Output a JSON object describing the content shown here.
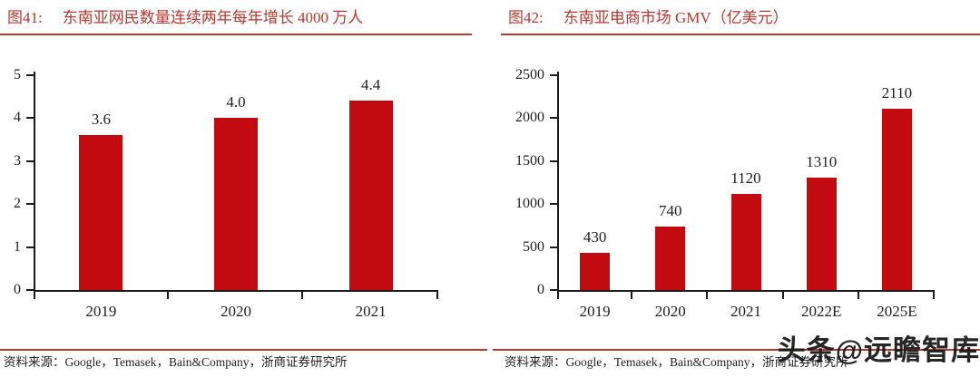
{
  "colors": {
    "bar_red": "#c20b10",
    "title_red": "#b23a2e",
    "rule_red": "#b23a2e",
    "axis_black": "#1a1a1a"
  },
  "watermark": {
    "text": "头条@远瞻智库"
  },
  "panels": [
    {
      "fig_label": "图41:",
      "title": "东南亚网民数量连续两年每年增长 4000 万人",
      "source_label": "资料来源：",
      "source_text": "Google，Temasek，Bain&Company，浙商证券研究所"
    },
    {
      "fig_label": "图42:",
      "title": "东南亚电商市场 GMV（亿美元）",
      "source_label": "资料来源：",
      "source_text": "Google，Temasek，Bain&Company，浙商证券研究所"
    }
  ],
  "chart_data": [
    {
      "type": "bar",
      "title": "东南亚网民数量连续两年每年增长 4000 万人",
      "categories": [
        "2019",
        "2020",
        "2021"
      ],
      "values": [
        3.6,
        4.0,
        4.4
      ],
      "data_labels": [
        "3.6",
        "4.0",
        "4.4"
      ],
      "xlabel": "",
      "ylabel": "",
      "ylim": [
        0,
        5
      ],
      "yticks": [
        0,
        1,
        2,
        3,
        4,
        5
      ],
      "ytick_labels": [
        "0",
        "1",
        "2",
        "3",
        "4",
        "5"
      ],
      "bar_color": "#c20b10",
      "grid": false,
      "legend": "none"
    },
    {
      "type": "bar",
      "title": "东南亚电商市场 GMV（亿美元）",
      "categories": [
        "2019",
        "2020",
        "2021",
        "2022E",
        "2025E"
      ],
      "values": [
        430,
        740,
        1120,
        1310,
        2110
      ],
      "data_labels": [
        "430",
        "740",
        "1120",
        "1310",
        "2110"
      ],
      "xlabel": "",
      "ylabel": "",
      "ylim": [
        0,
        2500
      ],
      "yticks": [
        0,
        500,
        1000,
        1500,
        2000,
        2500
      ],
      "ytick_labels": [
        "0",
        "500",
        "1000",
        "1500",
        "2000",
        "2500"
      ],
      "bar_color": "#c20b10",
      "grid": false,
      "legend": "none"
    }
  ]
}
